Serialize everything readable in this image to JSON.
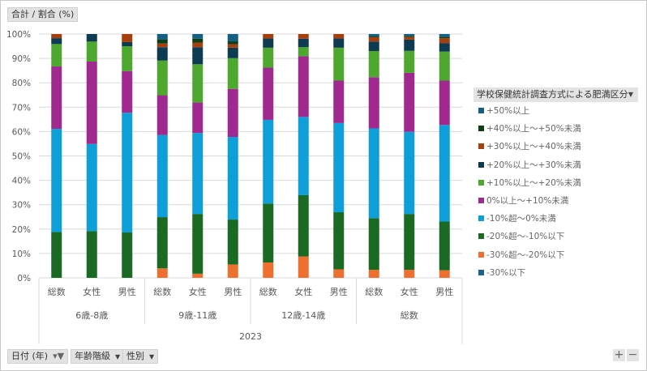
{
  "value_field": "合計 / 割合 (%)",
  "legend": {
    "title": "学校保健統計調査方式による肥満区分"
  },
  "filters": [
    {
      "label": "日付 (年)",
      "icon": "filter-icon"
    },
    {
      "label": "年齢階級",
      "icon": "dropdown-icon"
    },
    {
      "label": "性別",
      "icon": "dropdown-icon"
    }
  ],
  "zoom_controls": {
    "plus": "+",
    "minus": "−"
  },
  "chart_data": {
    "type": "bar",
    "stacked": "percent",
    "title": "",
    "ylim": [
      0,
      100
    ],
    "yticks": [
      "0%",
      "10%",
      "20%",
      "30%",
      "40%",
      "50%",
      "60%",
      "70%",
      "80%",
      "90%",
      "100%"
    ],
    "grid": true,
    "legend_position": "right",
    "categories": [
      "総数",
      "女性",
      "男性",
      "総数",
      "女性",
      "男性",
      "総数",
      "女性",
      "男性",
      "総数",
      "女性",
      "男性"
    ],
    "groups": [
      {
        "label": "6歳-8歳",
        "count": 3
      },
      {
        "label": "9歳-11歳",
        "count": 3
      },
      {
        "label": "12歳-14歳",
        "count": 3
      },
      {
        "label": "総数",
        "count": 3
      }
    ],
    "year": "2023",
    "series": [
      {
        "name": "-30%以下",
        "color": "#1f6391",
        "values": [
          0,
          0,
          0,
          0,
          0,
          0,
          0,
          0,
          0,
          0,
          0,
          0
        ]
      },
      {
        "name": "-30%超～-20%以下",
        "color": "#ed7031",
        "values": [
          0,
          0,
          0,
          3.9,
          1.7,
          5.5,
          6.3,
          8.8,
          3.5,
          3.3,
          3.3,
          3.1
        ]
      },
      {
        "name": "-20%超～-10%以下",
        "color": "#1b6a23",
        "values": [
          18.8,
          19.2,
          18.6,
          21.0,
          24.5,
          18.4,
          24.2,
          25.1,
          23.4,
          21.2,
          22.9,
          20.0
        ]
      },
      {
        "name": "-10%超～0%未満",
        "color": "#0e9fd8",
        "values": [
          42.3,
          35.7,
          49.1,
          33.7,
          33.2,
          33.9,
          34.3,
          32.1,
          36.6,
          36.8,
          33.7,
          39.6
        ]
      },
      {
        "name": "0%以上～+10%未満",
        "color": "#a0298f",
        "values": [
          25.6,
          33.8,
          17.1,
          16.3,
          12.5,
          19.7,
          21.4,
          24.9,
          17.4,
          21.0,
          24.2,
          18.2
        ]
      },
      {
        "name": "+10%以上～+20%未満",
        "color": "#4ea72e",
        "values": [
          9.2,
          8.2,
          10.2,
          14.2,
          15.7,
          12.6,
          8.2,
          3.7,
          13.5,
          10.7,
          9.0,
          11.9
        ]
      },
      {
        "name": "+20%以上～+30%未満",
        "color": "#0e3a52",
        "values": [
          2.4,
          3.1,
          1.7,
          5.5,
          7.0,
          4.3,
          3.8,
          3.5,
          3.8,
          3.9,
          4.6,
          3.5
        ]
      },
      {
        "name": "+30%以上～+40%未満",
        "color": "#a5400e",
        "values": [
          1.7,
          0,
          3.3,
          1.5,
          1.9,
          1.4,
          1.8,
          1.9,
          1.8,
          1.8,
          1.1,
          2.0
        ]
      },
      {
        "name": "+40%以上～+50%未満",
        "color": "#0f3e15",
        "values": [
          0,
          0,
          0,
          1.7,
          1.6,
          1.2,
          0,
          0,
          0,
          0.3,
          0.4,
          0.5
        ]
      },
      {
        "name": "+50%以上",
        "color": "#156082",
        "values": [
          0,
          0,
          0,
          2.2,
          1.9,
          3.0,
          0,
          0,
          0,
          1.0,
          0.8,
          1.2
        ]
      }
    ]
  }
}
